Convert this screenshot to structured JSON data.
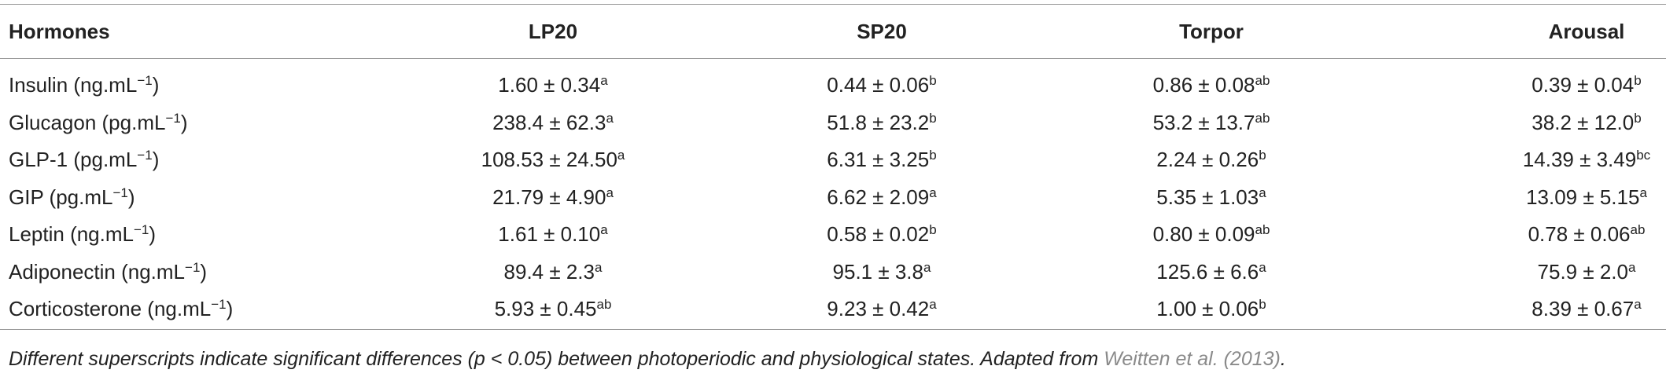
{
  "table": {
    "header": [
      "Hormones",
      "LP20",
      "SP20",
      "Torpor",
      "Arousal"
    ],
    "rows": [
      {
        "label": {
          "text": "Insulin (ng.mL",
          "sup": "−1",
          "end": ")"
        },
        "cells": [
          {
            "text": "1.60 ± 0.34",
            "sup": "a"
          },
          {
            "text": "0.44 ± 0.06",
            "sup": "b"
          },
          {
            "text": "0.86 ± 0.08",
            "sup": "ab"
          },
          {
            "text": "0.39 ± 0.04",
            "sup": "b"
          }
        ]
      },
      {
        "label": {
          "text": "Glucagon (pg.mL",
          "sup": "−1",
          "end": ")"
        },
        "cells": [
          {
            "text": "238.4 ± 62.3",
            "sup": "a"
          },
          {
            "text": "51.8 ± 23.2",
            "sup": "b"
          },
          {
            "text": "53.2 ± 13.7",
            "sup": "ab"
          },
          {
            "text": "38.2 ± 12.0",
            "sup": "b"
          }
        ]
      },
      {
        "label": {
          "text": "GLP-1 (pg.mL",
          "sup": "−1",
          "end": ")"
        },
        "cells": [
          {
            "text": "108.53 ± 24.50",
            "sup": "a"
          },
          {
            "text": "6.31 ± 3.25",
            "sup": "b"
          },
          {
            "text": "2.24 ± 0.26",
            "sup": "b"
          },
          {
            "text": "14.39 ± 3.49",
            "sup": "bc"
          }
        ]
      },
      {
        "label": {
          "text": "GIP (pg.mL",
          "sup": "−1",
          "end": ")"
        },
        "cells": [
          {
            "text": "21.79 ± 4.90",
            "sup": "a"
          },
          {
            "text": "6.62 ± 2.09",
            "sup": "a"
          },
          {
            "text": "5.35 ± 1.03",
            "sup": "a"
          },
          {
            "text": "13.09 ± 5.15",
            "sup": "a"
          }
        ]
      },
      {
        "label": {
          "text": "Leptin (ng.mL",
          "sup": "−1",
          "end": ")"
        },
        "cells": [
          {
            "text": "1.61 ± 0.10",
            "sup": "a"
          },
          {
            "text": "0.58 ± 0.02",
            "sup": "b"
          },
          {
            "text": "0.80 ± 0.09",
            "sup": "ab"
          },
          {
            "text": "0.78 ± 0.06",
            "sup": "ab"
          }
        ]
      },
      {
        "label": {
          "text": "Adiponectin (ng.mL",
          "sup": "−1",
          "end": ")"
        },
        "cells": [
          {
            "text": "89.4 ± 2.3",
            "sup": "a"
          },
          {
            "text": "95.1 ± 3.8",
            "sup": "a"
          },
          {
            "text": "125.6 ± 6.6",
            "sup": "a"
          },
          {
            "text": "75.9 ± 2.0",
            "sup": "a"
          }
        ]
      },
      {
        "label": {
          "text": "Corticosterone (ng.mL",
          "sup": "−1",
          "end": ")"
        },
        "cells": [
          {
            "text": "5.93 ± 0.45",
            "sup": "ab"
          },
          {
            "text": "9.23 ± 0.42",
            "sup": "a"
          },
          {
            "text": "1.00 ± 0.06",
            "sup": "b"
          },
          {
            "text": "8.39 ± 0.67",
            "sup": "a"
          }
        ]
      }
    ],
    "footnote": {
      "text": "Different superscripts indicate significant differences (p < 0.05) between photoperiodic and physiological states. Adapted from ",
      "link": "Weitten et al. (2013)",
      "end": "."
    }
  }
}
